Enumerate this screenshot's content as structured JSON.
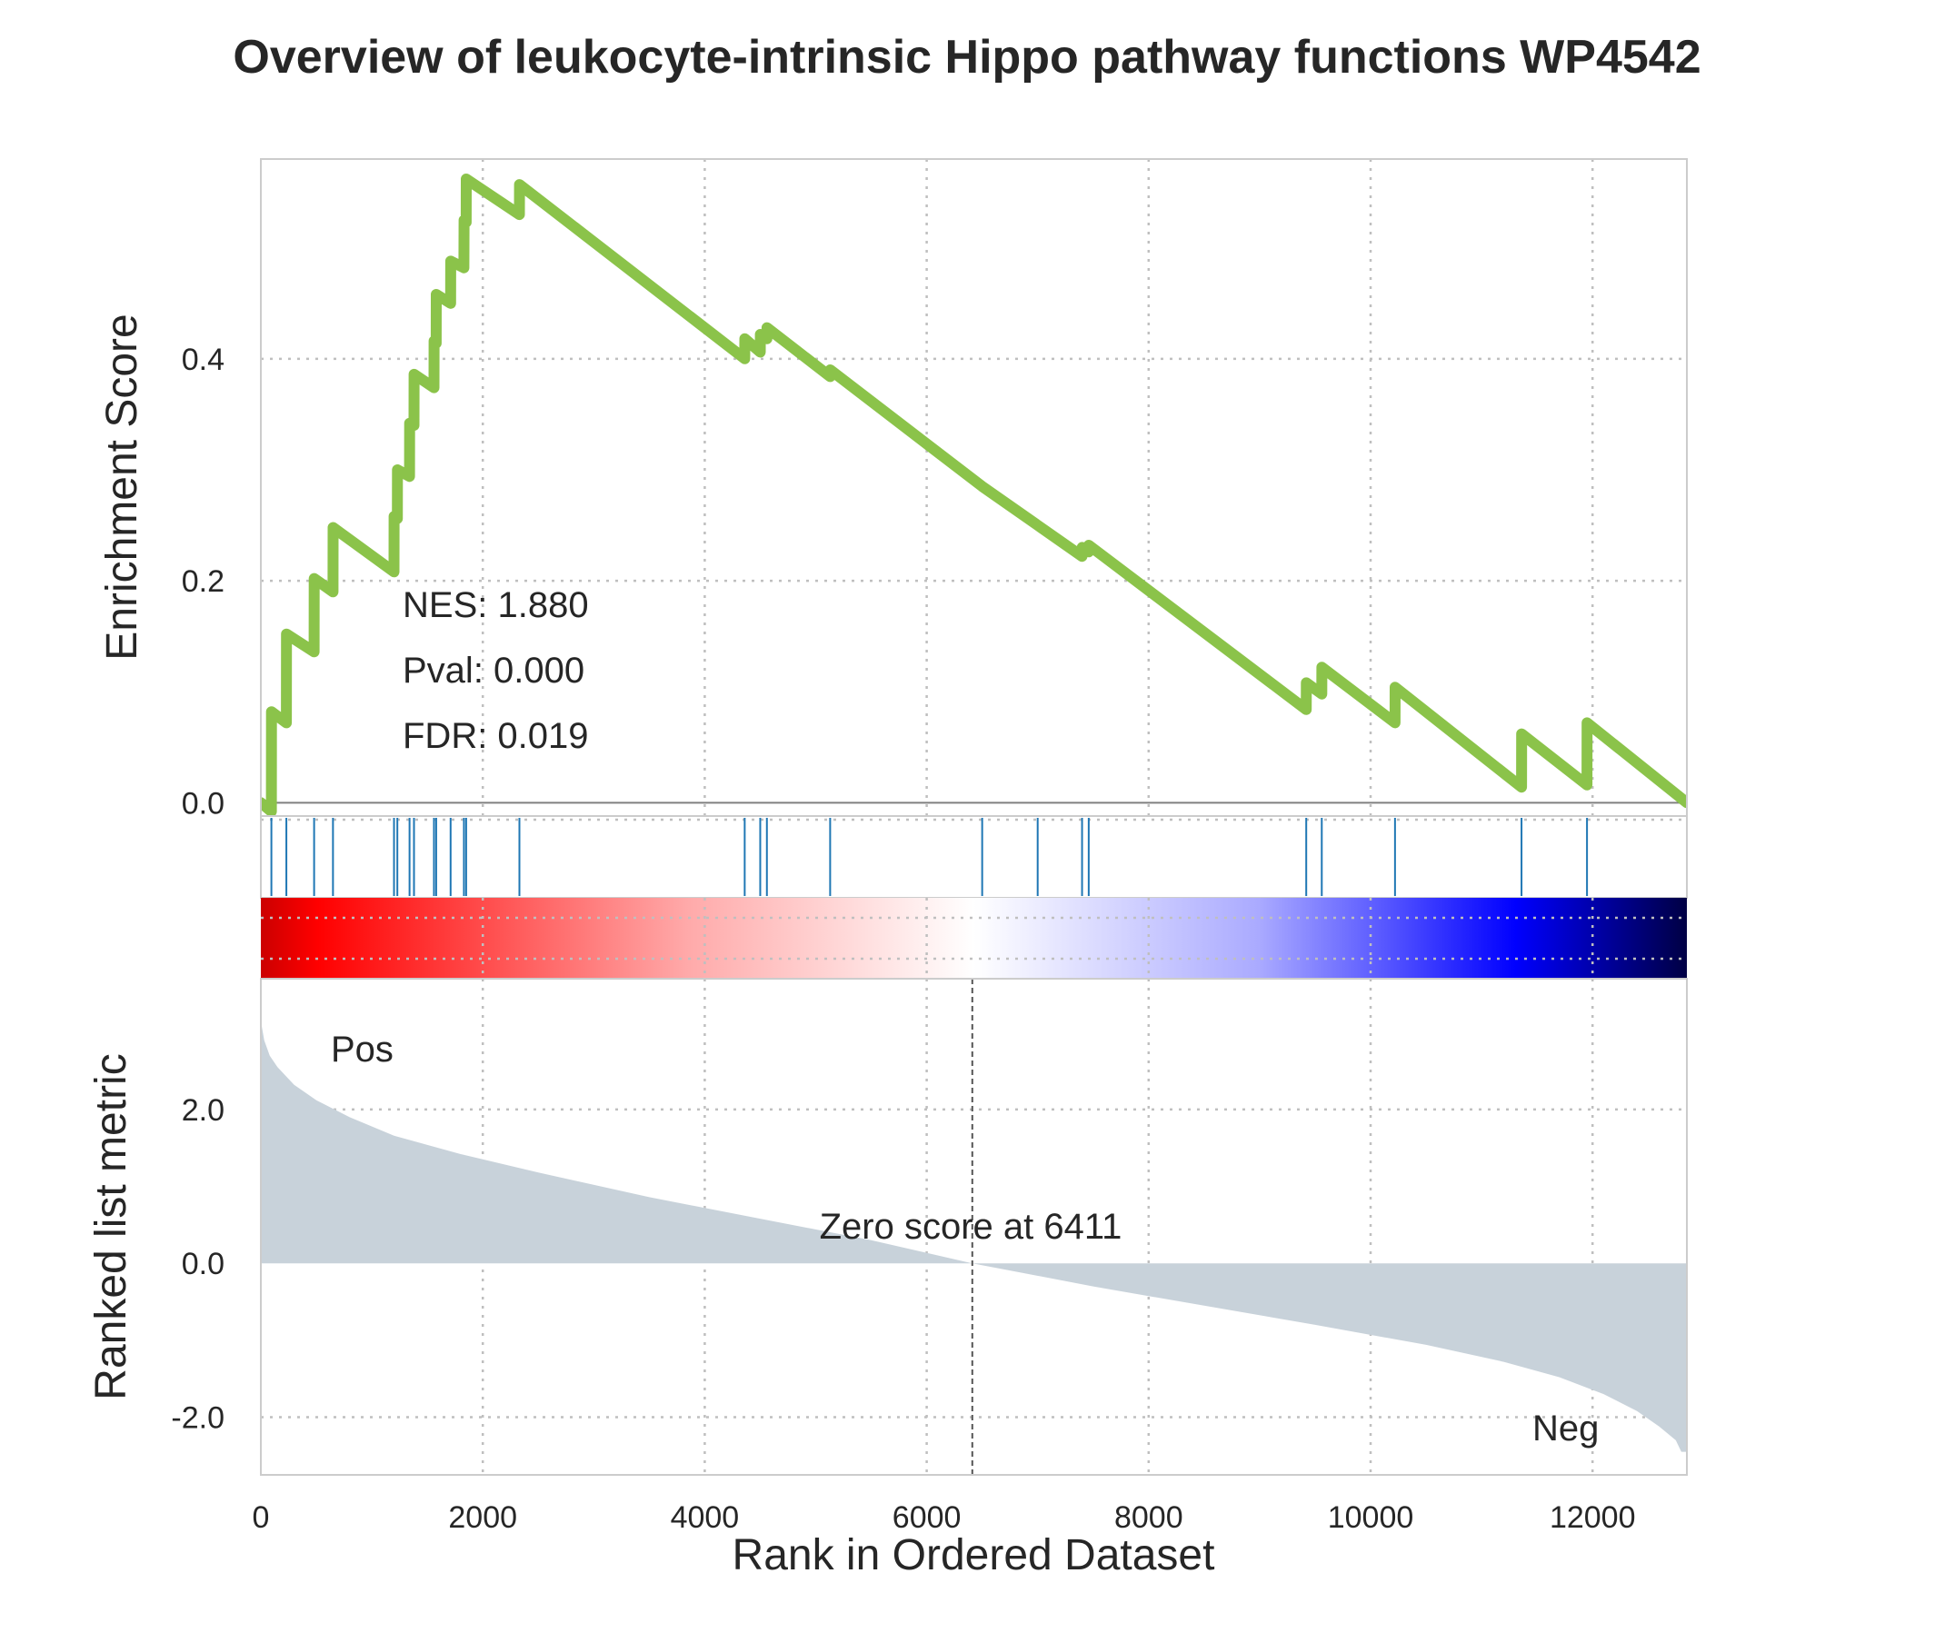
{
  "chart_data": {
    "type": "line",
    "title": "Overview of leukocyte-intrinsic Hippo pathway functions WP4542",
    "xlabel": "Rank in Ordered Dataset",
    "xlim": [
      0,
      12850
    ],
    "x_ticks": [
      0,
      2000,
      4000,
      6000,
      8000,
      10000,
      12000
    ],
    "grid": true,
    "enrichment_panel": {
      "ylabel": "Enrichment Score",
      "ylim": [
        -0.012,
        0.58
      ],
      "y_ticks": [
        0.0,
        0.2,
        0.4
      ],
      "y_tick_labels": [
        "0.0",
        "0.2",
        "0.4"
      ],
      "line_color": "#8bc34a",
      "stats": {
        "nes": "NES: 1.880",
        "pval": "Pval: 0.000",
        "fdr": "FDR: 0.019"
      },
      "points": [
        [
          0,
          0.0
        ],
        [
          95,
          -0.008
        ],
        [
          96,
          0.082
        ],
        [
          230,
          0.072
        ],
        [
          231,
          0.152
        ],
        [
          480,
          0.136
        ],
        [
          481,
          0.202
        ],
        [
          650,
          0.19
        ],
        [
          651,
          0.248
        ],
        [
          1200,
          0.208
        ],
        [
          1201,
          0.258
        ],
        [
          1230,
          0.256
        ],
        [
          1231,
          0.3
        ],
        [
          1340,
          0.294
        ],
        [
          1341,
          0.342
        ],
        [
          1380,
          0.34
        ],
        [
          1381,
          0.386
        ],
        [
          1560,
          0.374
        ],
        [
          1561,
          0.416
        ],
        [
          1580,
          0.414
        ],
        [
          1581,
          0.458
        ],
        [
          1710,
          0.45
        ],
        [
          1711,
          0.488
        ],
        [
          1830,
          0.482
        ],
        [
          1831,
          0.525
        ],
        [
          1850,
          0.523
        ],
        [
          1851,
          0.562
        ],
        [
          2330,
          0.53
        ],
        [
          2331,
          0.557
        ],
        [
          4360,
          0.4
        ],
        [
          4361,
          0.418
        ],
        [
          4500,
          0.406
        ],
        [
          4501,
          0.422
        ],
        [
          4560,
          0.418
        ],
        [
          4561,
          0.428
        ],
        [
          5130,
          0.384
        ],
        [
          5131,
          0.39
        ],
        [
          6500,
          0.285
        ],
        [
          7000,
          0.25
        ],
        [
          7400,
          0.222
        ],
        [
          7401,
          0.23
        ],
        [
          7460,
          0.226
        ],
        [
          7461,
          0.232
        ],
        [
          9420,
          0.084
        ],
        [
          9421,
          0.108
        ],
        [
          9560,
          0.098
        ],
        [
          9561,
          0.122
        ],
        [
          10220,
          0.072
        ],
        [
          10221,
          0.104
        ],
        [
          11360,
          0.014
        ],
        [
          11361,
          0.062
        ],
        [
          11950,
          0.016
        ],
        [
          11951,
          0.072
        ],
        [
          12850,
          0.0
        ]
      ]
    },
    "hit_positions": [
      95,
      230,
      480,
      650,
      1200,
      1230,
      1340,
      1380,
      1560,
      1580,
      1710,
      1830,
      1850,
      2330,
      4360,
      4500,
      4560,
      5130,
      6500,
      7000,
      7400,
      7460,
      9420,
      9560,
      10220,
      11360,
      11950
    ],
    "hit_color": "#1f77b4",
    "colorbar": {
      "stops": [
        {
          "offset": 0.0,
          "color": "#cc0000"
        },
        {
          "offset": 0.04,
          "color": "#ff0000"
        },
        {
          "offset": 0.3,
          "color": "#ffaaaa"
        },
        {
          "offset": 0.5,
          "color": "#ffffff"
        },
        {
          "offset": 0.7,
          "color": "#aaaaff"
        },
        {
          "offset": 0.88,
          "color": "#0000ff"
        },
        {
          "offset": 1.0,
          "color": "#000044"
        }
      ]
    },
    "ranked_panel": {
      "ylabel": "Ranked list metric",
      "ylim": [
        -2.75,
        3.7
      ],
      "y_ticks": [
        2.0,
        0.0,
        -2.0
      ],
      "y_tick_labels": [
        "2.0",
        "0.0",
        "-2.0"
      ],
      "fill_color": "#c8d2da",
      "pos_label": "Pos",
      "neg_label": "Neg",
      "pos_color": "#ff0000",
      "neg_color": "#0000ff",
      "zero_cross": 6411,
      "zero_label": "Zero score at 6411",
      "points": [
        [
          0,
          3.15
        ],
        [
          30,
          2.9
        ],
        [
          80,
          2.7
        ],
        [
          150,
          2.55
        ],
        [
          300,
          2.32
        ],
        [
          500,
          2.12
        ],
        [
          800,
          1.9
        ],
        [
          1200,
          1.66
        ],
        [
          1800,
          1.42
        ],
        [
          2500,
          1.18
        ],
        [
          3500,
          0.86
        ],
        [
          4500,
          0.58
        ],
        [
          5500,
          0.3
        ],
        [
          6411,
          0.0
        ],
        [
          7500,
          -0.3
        ],
        [
          8500,
          -0.55
        ],
        [
          9500,
          -0.8
        ],
        [
          10500,
          -1.06
        ],
        [
          11200,
          -1.28
        ],
        [
          11700,
          -1.48
        ],
        [
          12100,
          -1.7
        ],
        [
          12400,
          -1.92
        ],
        [
          12600,
          -2.12
        ],
        [
          12750,
          -2.3
        ],
        [
          12800,
          -2.45
        ],
        [
          12850,
          -2.45
        ]
      ]
    }
  }
}
